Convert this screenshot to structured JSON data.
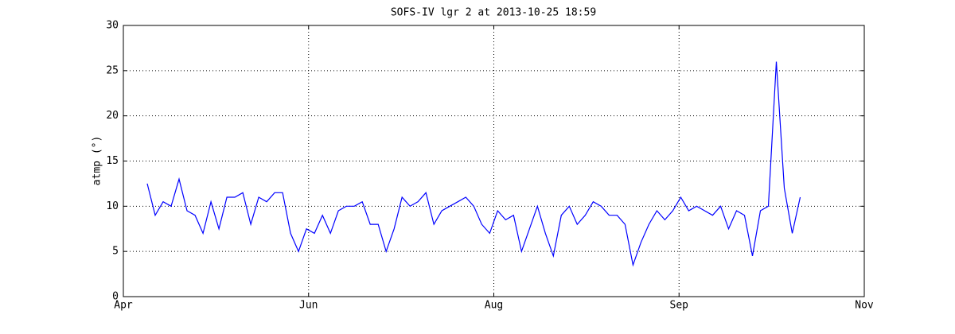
{
  "chart_data": {
    "type": "line",
    "title": "SOFS-IV lgr 2 at 2013-10-25 18:59",
    "ylabel": "atmp (°)",
    "x": [
      6.9,
      9.2,
      11.5,
      13.8,
      16.1,
      18.4,
      20.7,
      23,
      25.3,
      27.6,
      29.9,
      32.2,
      34.5,
      36.8,
      39.1,
      41.4,
      43.7,
      46,
      48.3,
      50.6,
      52.9,
      55.2,
      57.5,
      59.8,
      62.1,
      64.4,
      66.7,
      69,
      71.3,
      73.6,
      75.9,
      78.2,
      80.5,
      82.8,
      85.1,
      87.4,
      89.7,
      92,
      94.3,
      96.6,
      98.9,
      101.2,
      103.5,
      105.8,
      108.1,
      110.4,
      112.7,
      115,
      117.3,
      119.6,
      121.9,
      124.2,
      126.5,
      128.8,
      131.1,
      133.4,
      135.7,
      138,
      140.3,
      142.6,
      144.9,
      147.2,
      149.5,
      151.8,
      154.1,
      156.4,
      158.7,
      161,
      163.3,
      165.6,
      167.9,
      170.2,
      172.5,
      174.8,
      177.1,
      179.4,
      181.7,
      184,
      186.3,
      188.6,
      190.9,
      193.2,
      195.5
    ],
    "series": [
      {
        "name": "atmp",
        "color": "#0000ff",
        "values": [
          12.5,
          9,
          10.5,
          10,
          13,
          9.5,
          9,
          7,
          10.5,
          7.5,
          11,
          11,
          11.5,
          8,
          11,
          10.5,
          11.5,
          11.5,
          7,
          5,
          7.5,
          7,
          9,
          7,
          9.5,
          10,
          10,
          10.5,
          8,
          8,
          5,
          7.5,
          11,
          10,
          10.5,
          11.5,
          8,
          9.5,
          10,
          10.5,
          11,
          10,
          8,
          7,
          9.5,
          8.5,
          9,
          5,
          7.5,
          10,
          7,
          4.5,
          9,
          10,
          8,
          9,
          10.5,
          10,
          9,
          9,
          8,
          3.5,
          6,
          8,
          9.5,
          8.5,
          9.5,
          11,
          9.5,
          10,
          9.5,
          9,
          10,
          7.5,
          9.5,
          9,
          4.5,
          9.5,
          10,
          26,
          12,
          7,
          11
        ]
      }
    ],
    "xlim": [
      0,
      214
    ],
    "xticks": [
      {
        "value": 0,
        "label": "Apr"
      },
      {
        "value": 53.5,
        "label": "Jun"
      },
      {
        "value": 107,
        "label": "Aug"
      },
      {
        "value": 160.5,
        "label": "Sep"
      },
      {
        "value": 214,
        "label": "Nov"
      }
    ],
    "ylim": [
      0,
      30
    ],
    "yticks": [
      0,
      5,
      10,
      15,
      20,
      25,
      30
    ],
    "grid": true
  }
}
